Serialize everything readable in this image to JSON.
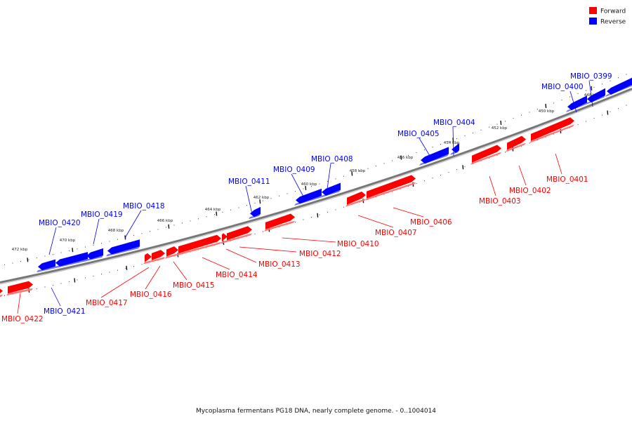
{
  "legend": [
    {
      "label": "Forward",
      "color": "#ff0000"
    },
    {
      "label": "Reverse",
      "color": "#0000ff"
    }
  ],
  "colors": {
    "forward": "#ff0000",
    "reverse": "#0000ff",
    "backbone": "#777777"
  },
  "caption": "Mycoplasma fermentans PG18 DNA, nearly complete genome. - 0..1004014",
  "tick_labels": [
    "448 kbp",
    "450 kbp",
    "452 kbp",
    "454 kbp",
    "456 kbp",
    "458 kbp",
    "460 kbp",
    "462 kbp",
    "464 kbp",
    "466 kbp",
    "468 kbp",
    "470 kbp",
    "472 kbp"
  ],
  "genes": [
    {
      "id": "MBIO_0399",
      "strand": "reverse"
    },
    {
      "id": "MBIO_0400",
      "strand": "reverse"
    },
    {
      "id": "MBIO_0401",
      "strand": "forward"
    },
    {
      "id": "MBIO_0402",
      "strand": "forward"
    },
    {
      "id": "MBIO_0403",
      "strand": "forward"
    },
    {
      "id": "MBIO_0404",
      "strand": "reverse"
    },
    {
      "id": "MBIO_0405",
      "strand": "reverse"
    },
    {
      "id": "MBIO_0406",
      "strand": "forward"
    },
    {
      "id": "MBIO_0407",
      "strand": "forward"
    },
    {
      "id": "MBIO_0408",
      "strand": "reverse"
    },
    {
      "id": "MBIO_0409",
      "strand": "reverse"
    },
    {
      "id": "MBIO_0410",
      "strand": "forward"
    },
    {
      "id": "MBIO_0411",
      "strand": "reverse"
    },
    {
      "id": "MBIO_0412",
      "strand": "forward"
    },
    {
      "id": "MBIO_0413",
      "strand": "forward"
    },
    {
      "id": "MBIO_0414",
      "strand": "forward"
    },
    {
      "id": "MBIO_0415",
      "strand": "forward"
    },
    {
      "id": "MBIO_0416",
      "strand": "forward"
    },
    {
      "id": "MBIO_0417",
      "strand": "forward"
    },
    {
      "id": "MBIO_0418",
      "strand": "reverse"
    },
    {
      "id": "MBIO_0419",
      "strand": "reverse"
    },
    {
      "id": "MBIO_0420",
      "strand": "reverse"
    },
    {
      "id": "MBIO_0421",
      "strand": "reverse"
    },
    {
      "id": "MBIO_0422",
      "strand": "forward"
    }
  ]
}
